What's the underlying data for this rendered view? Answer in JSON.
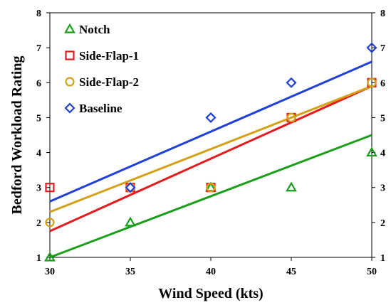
{
  "chart_data": {
    "type": "scatter",
    "title": "",
    "xlabel": "Wind Speed (kts)",
    "ylabel": "Bedford Workload Rating",
    "xlim": [
      30,
      50
    ],
    "ylim": [
      1,
      8
    ],
    "x_ticks": [
      "30",
      "35",
      "40",
      "45",
      "50"
    ],
    "y_ticks": [
      "1",
      "2",
      "3",
      "4",
      "5",
      "6",
      "7",
      "8"
    ],
    "y2_ticks": [
      "1",
      "2",
      "3",
      "4",
      "5",
      "6",
      "7",
      "8"
    ],
    "grid": false,
    "legend_position": "top-left",
    "series": [
      {
        "name": "Notch",
        "marker": "triangle",
        "color": "#1a9e1a",
        "points": [
          [
            30,
            1
          ],
          [
            35,
            2
          ],
          [
            40,
            3
          ],
          [
            45,
            3
          ],
          [
            50,
            4
          ]
        ],
        "trendline": [
          [
            30,
            1.0
          ],
          [
            50,
            4.5
          ]
        ]
      },
      {
        "name": "Side-Flap-1",
        "marker": "square",
        "color": "#e41a1c",
        "points": [
          [
            30,
            3
          ],
          [
            35,
            3
          ],
          [
            40,
            3
          ],
          [
            45,
            5
          ],
          [
            50,
            6
          ]
        ],
        "trendline": [
          [
            30,
            1.75
          ],
          [
            50,
            5.9
          ]
        ]
      },
      {
        "name": "Side-Flap-2",
        "marker": "circle",
        "color": "#d4a017",
        "points": [
          [
            30,
            2
          ],
          [
            35,
            3
          ],
          [
            40,
            3
          ],
          [
            45,
            5
          ],
          [
            50,
            6
          ]
        ],
        "trendline": [
          [
            30,
            2.3
          ],
          [
            50,
            5.9
          ]
        ]
      },
      {
        "name": "Baseline",
        "marker": "diamond",
        "color": "#1f3fd6",
        "points": [
          [
            35,
            3
          ],
          [
            40,
            5
          ],
          [
            45,
            6
          ],
          [
            50,
            7
          ]
        ],
        "trendline": [
          [
            30,
            2.6
          ],
          [
            50,
            6.6
          ]
        ]
      }
    ]
  }
}
